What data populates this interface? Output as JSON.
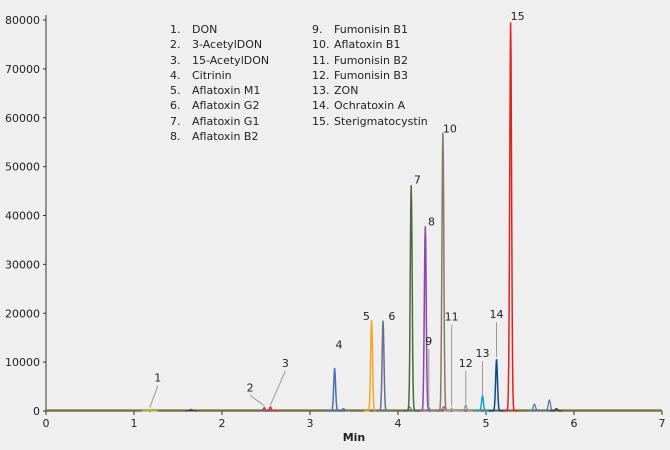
{
  "chart_data": {
    "type": "line",
    "title": "",
    "xlabel": "Min",
    "ylabel": "",
    "xlim": [
      0,
      7
    ],
    "ylim": [
      0,
      80000
    ],
    "xticks": [
      "0",
      "1",
      "2",
      "3",
      "4",
      "5",
      "6",
      "7"
    ],
    "yticks": [
      "0",
      "10000",
      "20000",
      "30000",
      "40000",
      "50000",
      "60000",
      "70000",
      "80000"
    ],
    "grid": false,
    "legend_position": "top-center",
    "legend": [
      {
        "num": "1.",
        "name": "DON"
      },
      {
        "num": "2.",
        "name": "3-AcetylDON"
      },
      {
        "num": "3.",
        "name": "15-AcetylDON"
      },
      {
        "num": "4.",
        "name": "Citrinin"
      },
      {
        "num": "5.",
        "name": "Aflatoxin M1"
      },
      {
        "num": "6.",
        "name": "Aflatoxin G2"
      },
      {
        "num": "7.",
        "name": "Aflatoxin G1"
      },
      {
        "num": "8.",
        "name": "Aflatoxin B2"
      },
      {
        "num": "9.",
        "name": "Fumonisin B1"
      },
      {
        "num": "10.",
        "name": "Aflatoxin B1"
      },
      {
        "num": "11.",
        "name": "Fumonisin B2"
      },
      {
        "num": "12.",
        "name": "Fumonisin B3"
      },
      {
        "num": "13.",
        "name": "ZON"
      },
      {
        "num": "14.",
        "name": "Ochratoxin A"
      },
      {
        "num": "15.",
        "name": "Sterigmatocystin"
      }
    ],
    "series": [
      {
        "name": "1",
        "rt": 1.18,
        "height": 300,
        "color": "#b5c23a"
      },
      {
        "name": "2",
        "rt": 2.48,
        "height": 700,
        "color": "#666666"
      },
      {
        "name": "3",
        "rt": 2.55,
        "height": 800,
        "color": "#d0304a"
      },
      {
        "name": "4",
        "rt": 3.28,
        "height": 8800,
        "color": "#4a6fb5"
      },
      {
        "name": "5",
        "rt": 3.7,
        "height": 18600,
        "color": "#f5a623"
      },
      {
        "name": "6",
        "rt": 3.83,
        "height": 18500,
        "color": "#6a6f8f"
      },
      {
        "name": "7",
        "rt": 4.15,
        "height": 46200,
        "color": "#4b6b3a"
      },
      {
        "name": "8",
        "rt": 4.31,
        "height": 37800,
        "color": "#8e44ad"
      },
      {
        "name": "9",
        "rt": 4.35,
        "height": 700,
        "color": "#888888"
      },
      {
        "name": "10",
        "rt": 4.51,
        "height": 56900,
        "color": "#8a7a64"
      },
      {
        "name": "11",
        "rt": 4.61,
        "height": 600,
        "color": "#aaaaaa"
      },
      {
        "name": "12",
        "rt": 4.77,
        "height": 1200,
        "color": "#999999"
      },
      {
        "name": "13",
        "rt": 4.96,
        "height": 3100,
        "color": "#1a9fc9"
      },
      {
        "name": "14",
        "rt": 5.12,
        "height": 10600,
        "color": "#0d4a8a"
      },
      {
        "name": "15",
        "rt": 5.28,
        "height": 79500,
        "color": "#e02020"
      }
    ],
    "annotations": [
      {
        "text": "1",
        "peak": 1
      },
      {
        "text": "2",
        "peak": 2
      },
      {
        "text": "3",
        "peak": 3
      },
      {
        "text": "4",
        "peak": 4
      },
      {
        "text": "5",
        "peak": 5
      },
      {
        "text": "6",
        "peak": 6
      },
      {
        "text": "7",
        "peak": 7
      },
      {
        "text": "8",
        "peak": 8
      },
      {
        "text": "9",
        "peak": 9
      },
      {
        "text": "10",
        "peak": 10
      },
      {
        "text": "11",
        "peak": 11
      },
      {
        "text": "12",
        "peak": 12
      },
      {
        "text": "13",
        "peak": 13
      },
      {
        "text": "14",
        "peak": 14
      },
      {
        "text": "15",
        "peak": 15
      }
    ]
  }
}
